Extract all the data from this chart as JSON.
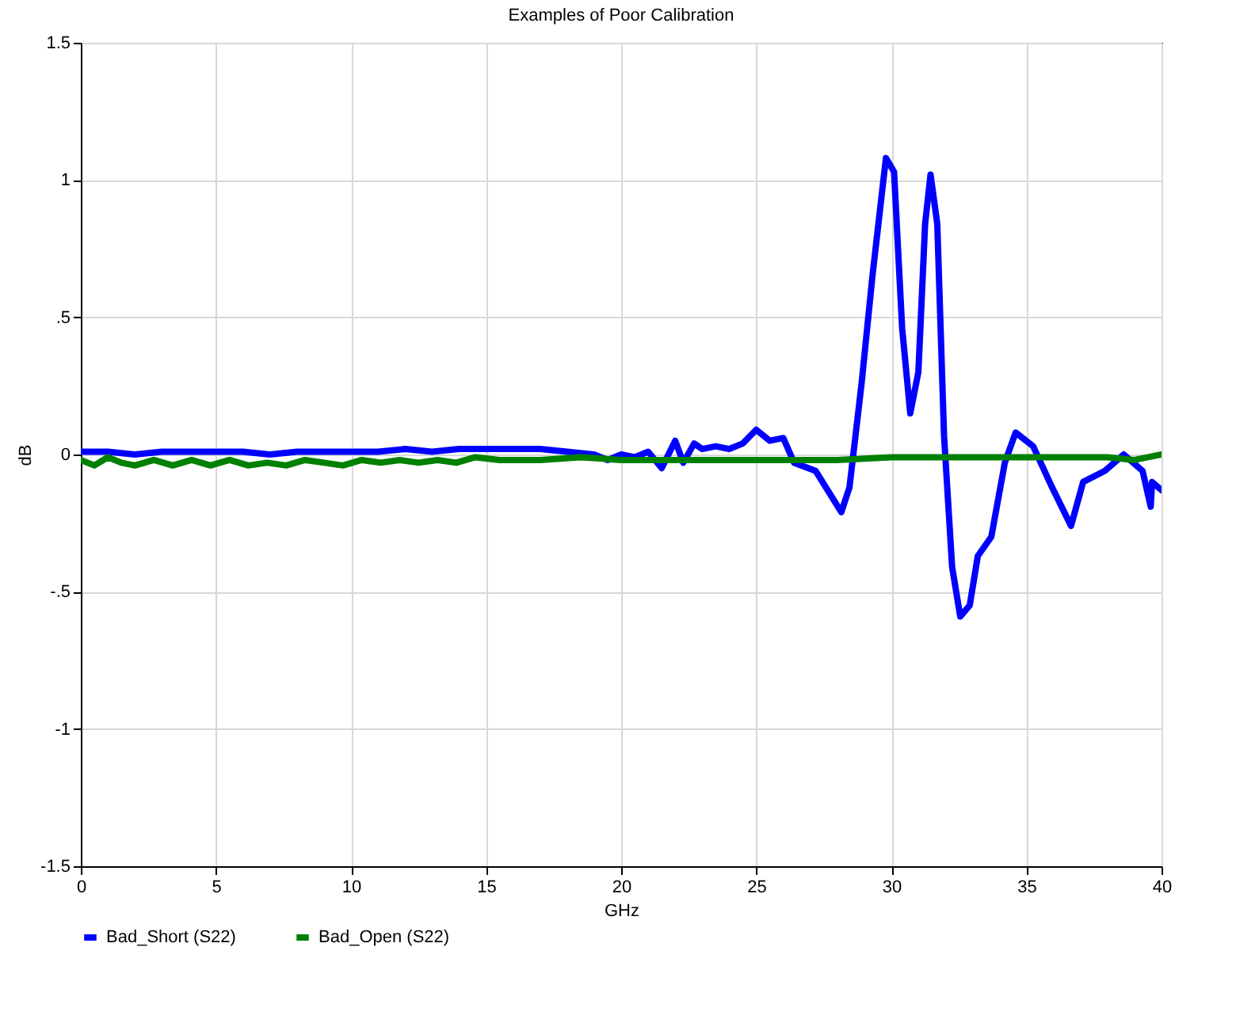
{
  "chart_data": {
    "type": "line",
    "title": "Examples of Poor Calibration",
    "xlabel": "GHz",
    "ylabel": "dB",
    "xlim": [
      0,
      40
    ],
    "xticks": [
      0,
      5,
      10,
      15,
      20,
      25,
      30,
      35,
      40
    ],
    "ylim": [
      -1.5,
      1.5
    ],
    "yticks": [
      {
        "value": -1.5,
        "label": "-1.5"
      },
      {
        "value": -1,
        "label": "-1"
      },
      {
        "value": -0.5,
        "label": "-.5"
      },
      0,
      {
        "value": 0.5,
        "label": ".5"
      },
      1,
      {
        "value": 1.5,
        "label": "1.5"
      }
    ],
    "grid": true,
    "legend": "bottom left",
    "marker": "none",
    "line_style": "solid",
    "series": [
      {
        "name": "Bad_Short (S22)",
        "color": "#0000ff",
        "x": [
          0,
          1,
          2,
          3,
          4,
          5,
          6,
          7,
          8,
          9,
          10,
          11,
          12,
          13,
          14,
          15,
          16,
          17,
          18,
          19,
          19.5,
          20,
          20.5,
          21,
          21.5,
          22,
          22.3,
          22.7,
          23,
          23.5,
          24,
          24.5,
          25,
          25.5,
          26,
          26.4,
          27.2,
          28.15,
          28.45,
          28.9,
          29.3,
          29.8,
          30.1,
          30.4,
          30.7,
          31,
          31.25,
          31.45,
          31.7,
          31.95,
          32.25,
          32.55,
          32.9,
          33.2,
          33.7,
          34.2,
          34.6,
          35.25,
          35.95,
          36.65,
          37.1,
          37.9,
          38.6,
          39.3,
          39.6,
          39.65,
          40
        ],
        "values": [
          0.01,
          0.01,
          0.0,
          0.01,
          0.01,
          0.01,
          0.01,
          0.0,
          0.01,
          0.01,
          0.01,
          0.01,
          0.02,
          0.01,
          0.02,
          0.02,
          0.02,
          0.02,
          0.01,
          0.0,
          -0.02,
          0.0,
          -0.01,
          0.01,
          -0.05,
          0.05,
          -0.03,
          0.04,
          0.02,
          0.03,
          0.02,
          0.04,
          0.09,
          0.05,
          0.06,
          -0.03,
          -0.06,
          -0.21,
          -0.12,
          0.26,
          0.65,
          1.08,
          1.03,
          0.46,
          0.15,
          0.3,
          0.84,
          1.02,
          0.84,
          0.07,
          -0.41,
          -0.59,
          -0.55,
          -0.37,
          -0.3,
          -0.03,
          0.08,
          0.03,
          -0.12,
          -0.26,
          -0.1,
          -0.06,
          0.0,
          -0.06,
          -0.19,
          -0.1,
          -0.13
        ]
      },
      {
        "name": "Bad_Open (S22)",
        "color": "#008000",
        "x": [
          0,
          0.5,
          1,
          1.5,
          2,
          2.7,
          3.4,
          4.1,
          4.8,
          5.5,
          6.2,
          6.9,
          7.6,
          8.3,
          9,
          9.7,
          10.4,
          11.1,
          11.8,
          12.5,
          13.2,
          13.9,
          14.6,
          15.5,
          17,
          18.5,
          20,
          22,
          24,
          26,
          28,
          30,
          32,
          34,
          36,
          38,
          39,
          40
        ],
        "values": [
          -0.02,
          -0.04,
          -0.01,
          -0.03,
          -0.04,
          -0.02,
          -0.04,
          -0.02,
          -0.04,
          -0.02,
          -0.04,
          -0.03,
          -0.04,
          -0.02,
          -0.03,
          -0.04,
          -0.02,
          -0.03,
          -0.02,
          -0.03,
          -0.02,
          -0.03,
          -0.01,
          -0.02,
          -0.02,
          -0.01,
          -0.02,
          -0.02,
          -0.02,
          -0.02,
          -0.02,
          -0.01,
          -0.01,
          -0.01,
          -0.01,
          -0.01,
          -0.02,
          0.0
        ]
      }
    ]
  }
}
